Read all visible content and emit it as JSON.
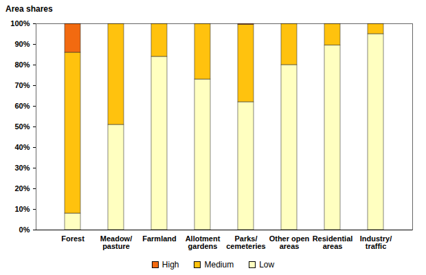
{
  "chart_data": {
    "type": "bar",
    "stacked": true,
    "title": "Area shares",
    "categories": [
      "Forest",
      "Meadow/\npasture",
      "Farmland",
      "Allotment\ngardens",
      "Parks/\ncemeteries",
      "Other open\nareas",
      "Residential\nareas",
      "Industry/\ntraffic"
    ],
    "series": [
      {
        "name": "High",
        "color": "#f26a10",
        "values": [
          14,
          0,
          0,
          0,
          0.5,
          0,
          0,
          0
        ]
      },
      {
        "name": "Medium",
        "color": "#ffc20e",
        "values": [
          78,
          49,
          16,
          27,
          37.5,
          20,
          10.5,
          5
        ]
      },
      {
        "name": "Low",
        "color": "#ffffc0",
        "values": [
          8,
          51,
          84,
          73,
          62,
          80,
          89.5,
          95
        ]
      }
    ],
    "ylim": [
      0,
      100
    ],
    "yticks": [
      {
        "value": 0,
        "label": "0%"
      },
      {
        "value": 10,
        "label": "10%"
      },
      {
        "value": 20,
        "label": "20%"
      },
      {
        "value": 30,
        "label": "30%"
      },
      {
        "value": 40,
        "label": "40%"
      },
      {
        "value": 50,
        "label": "50%"
      },
      {
        "value": 60,
        "label": "60%"
      },
      {
        "value": 70,
        "label": "70%"
      },
      {
        "value": 80,
        "label": "80%"
      },
      {
        "value": 90,
        "label": "90%"
      },
      {
        "value": 100,
        "label": "100%"
      }
    ],
    "grid": false,
    "legend": "bottom"
  }
}
